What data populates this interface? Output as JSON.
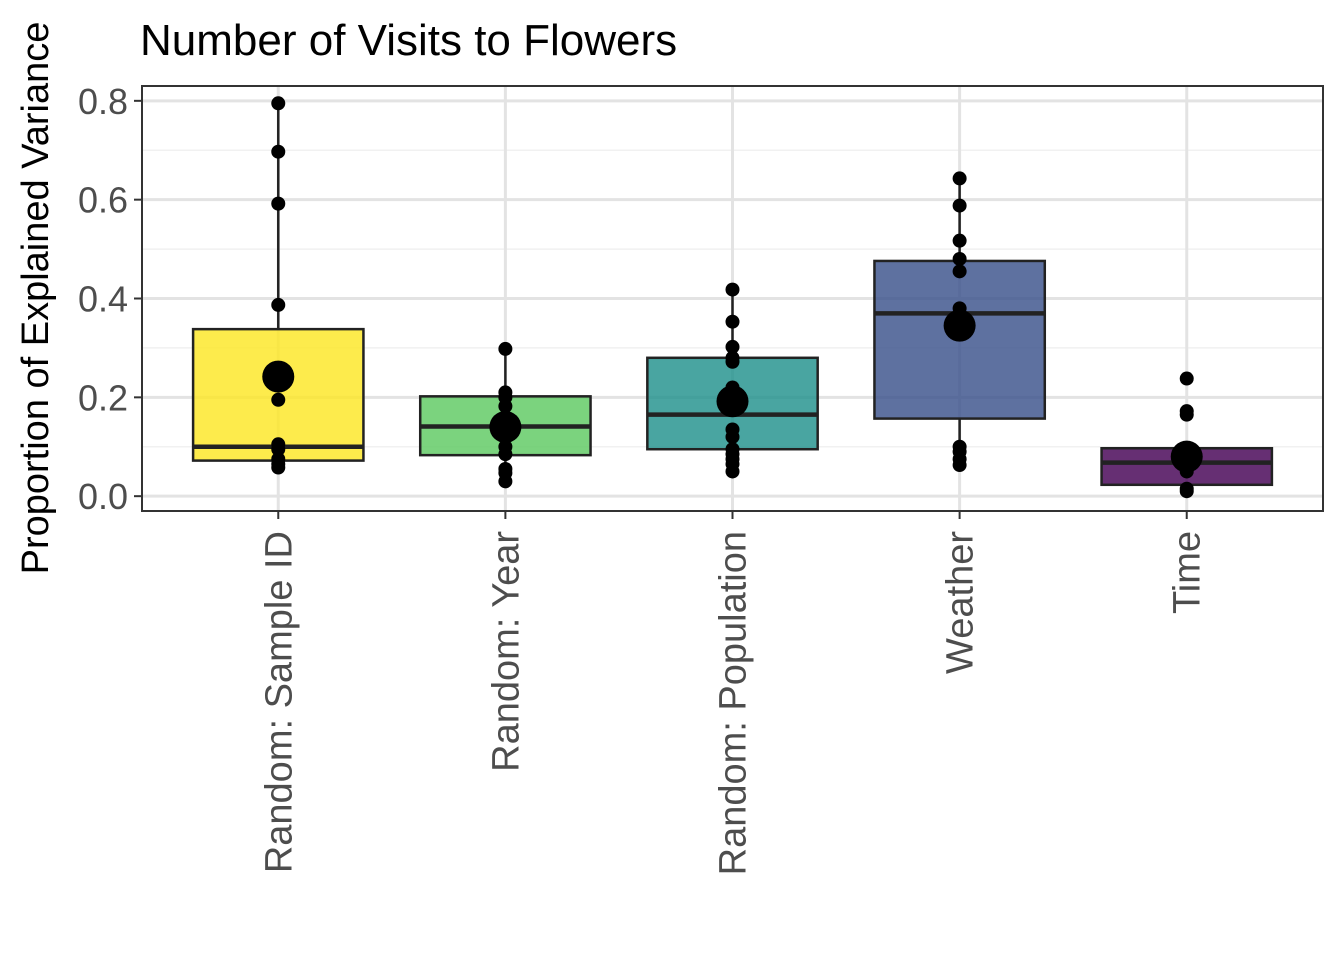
{
  "chart_data": {
    "type": "box",
    "title": "Number of Visits to Flowers",
    "xlabel": "",
    "ylabel": "Proportion of Explained Variance",
    "ylim": [
      -0.03,
      0.83
    ],
    "yticks": [
      0.0,
      0.2,
      0.4,
      0.6,
      0.8
    ],
    "ytick_labels": [
      "0.0",
      "0.2",
      "0.4",
      "0.6",
      "0.8"
    ],
    "grid": true,
    "legend": "none",
    "categories": [
      "Random: Sample ID",
      "Random: Year",
      "Random: Population",
      "Weather",
      "Time"
    ],
    "colors": [
      "#FDE725",
      "#5EC962",
      "#21918C",
      "#3B528B",
      "#440154"
    ],
    "boxes": [
      {
        "q1": 0.072,
        "median": 0.1,
        "q3": 0.338,
        "whisker_low": 0.055,
        "whisker_high": 0.795,
        "mean": 0.242
      },
      {
        "q1": 0.083,
        "median": 0.141,
        "q3": 0.202,
        "whisker_low": 0.03,
        "whisker_high": 0.298,
        "mean": 0.14
      },
      {
        "q1": 0.095,
        "median": 0.165,
        "q3": 0.28,
        "whisker_low": 0.05,
        "whisker_high": 0.418,
        "mean": 0.192
      },
      {
        "q1": 0.157,
        "median": 0.37,
        "q3": 0.476,
        "whisker_low": 0.063,
        "whisker_high": 0.643,
        "mean": 0.345
      },
      {
        "q1": 0.023,
        "median": 0.068,
        "q3": 0.097,
        "whisker_low": 0.01,
        "whisker_high": 0.097,
        "mean": 0.08
      }
    ],
    "points": [
      [
        0.795,
        0.697,
        0.592,
        0.387,
        0.195,
        0.105,
        0.095,
        0.075,
        0.065,
        0.058
      ],
      [
        0.298,
        0.21,
        0.2,
        0.182,
        0.16,
        0.12,
        0.1,
        0.085,
        0.055,
        0.047,
        0.03
      ],
      [
        0.418,
        0.353,
        0.302,
        0.28,
        0.272,
        0.22,
        0.21,
        0.135,
        0.12,
        0.095,
        0.085,
        0.075,
        0.065,
        0.05
      ],
      [
        0.643,
        0.588,
        0.517,
        0.48,
        0.455,
        0.38,
        0.33,
        0.1,
        0.09,
        0.075,
        0.063
      ],
      [
        0.238,
        0.172,
        0.165,
        0.097,
        0.09,
        0.07,
        0.05,
        0.015,
        0.01
      ]
    ]
  }
}
